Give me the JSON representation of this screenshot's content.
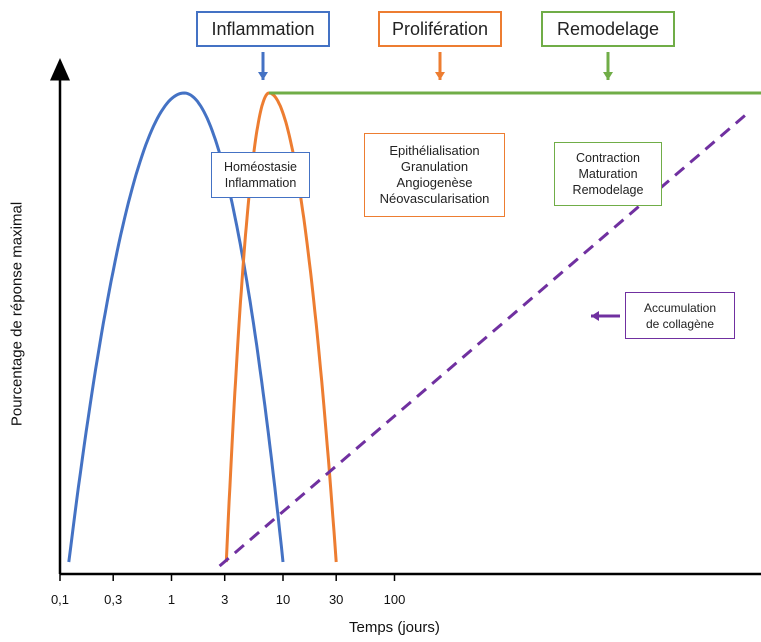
{
  "chart_data": {
    "type": "line",
    "xlabel": "Temps (jours)",
    "ylabel": "Pourcentage de réponse maximal",
    "x_scale": "log",
    "xlim": [
      0.1,
      200
    ],
    "x_ticks": [
      {
        "value": 0.1,
        "label": "0,1"
      },
      {
        "value": 0.3,
        "label": "0,3"
      },
      {
        "value": 1,
        "label": "1"
      },
      {
        "value": 3,
        "label": "3"
      },
      {
        "value": 10,
        "label": "10"
      },
      {
        "value": 30,
        "label": "30"
      },
      {
        "value": 100,
        "label": "100"
      }
    ],
    "ylim": [
      0,
      100
    ],
    "grid": false,
    "series": [
      {
        "phase": "inflammation",
        "color": "#4472C4",
        "shape": "arch",
        "x_start": 0.12,
        "x_peak": 1.3,
        "x_end": 10,
        "peak": 100
      },
      {
        "phase": "proliferation",
        "color": "#ED7D31",
        "shape": "arch",
        "x_start": 3.1,
        "x_peak": 7.5,
        "x_end": 30,
        "peak": 100
      },
      {
        "phase": "remodelage",
        "color": "#70AD47",
        "shape": "plateau",
        "x": [
          7.5,
          200
        ],
        "values": [
          100,
          100
        ]
      },
      {
        "phase": "collagene",
        "color": "#7030A0",
        "shape": "dashed-line",
        "x": [
          2.7,
          200
        ],
        "values": [
          0,
          100
        ]
      }
    ]
  },
  "phases": {
    "inflammation": {
      "label": "Inflammation",
      "color": "#4472C4"
    },
    "proliferation": {
      "label": "Prolifération",
      "color": "#ED7D31"
    },
    "remodelage": {
      "label": "Remodelage",
      "color": "#70AD47"
    }
  },
  "notes": {
    "inflammation": {
      "lines": [
        "Homéostasie",
        "Inflammation"
      ],
      "color": "#4472C4"
    },
    "proliferation": {
      "lines": [
        "Epithélialisation",
        "Granulation",
        "Angiogenèse",
        "Néovascularisation"
      ],
      "color": "#ED7D31"
    },
    "remodelage": {
      "lines": [
        "Contraction",
        "Maturation",
        "Remodelage"
      ],
      "color": "#70AD47"
    },
    "collagene": {
      "lines": [
        "Accumulation",
        "de collagène"
      ],
      "color": "#7030A0"
    }
  }
}
